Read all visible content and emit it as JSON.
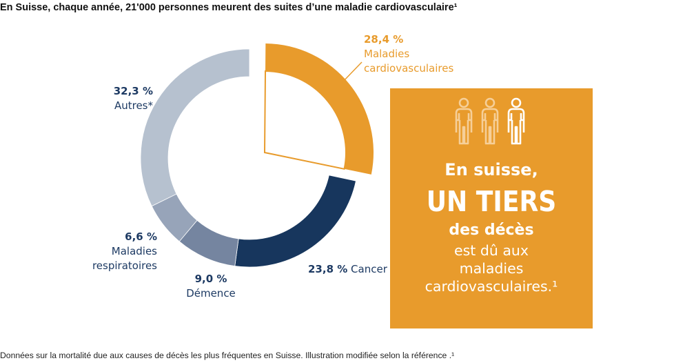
{
  "title": "En Suisse, chaque année, 21'000 personnes meurent des suites d’une maladie cardiovasculaire¹",
  "footnote": "Données sur la mortalité due aux causes de décès les plus fréquentes en Suisse. Illustration modifiée selon la référence .¹",
  "colors": {
    "cardio": "#e89b2c",
    "cancer": "#17365d",
    "dementia": "#7585a0",
    "respiratory": "#97a4b9",
    "other": "#b6c1cf",
    "label_blue": "#1d3a63"
  },
  "labels": {
    "cardio_pct": "28,4 %",
    "cardio_name_1": "Maladies",
    "cardio_name_2": "cardiovasculaires",
    "cancer_pct": "23,8 %",
    "cancer_name": "Cancer",
    "dementia_pct": "9,0 %",
    "dementia_name": "Démence",
    "respiratory_pct": "6,6 %",
    "respiratory_name_1": "Maladies",
    "respiratory_name_2": "respiratoires",
    "other_pct": "32,3 %",
    "other_name": "Autres*"
  },
  "callout": {
    "line1": "En suisse,",
    "line2": "UN TIERS",
    "line3": "des décès",
    "line4a": "est dû aux",
    "line4b": "maladies",
    "line4c": "cardiovasculaires.¹",
    "icons": [
      "person-icon",
      "person-icon",
      "person-outline-icon"
    ]
  },
  "chart_data": {
    "type": "pie",
    "variant": "donut",
    "categories": [
      "Maladies cardiovasculaires",
      "Cancer",
      "Démence",
      "Maladies respiratoires",
      "Autres*"
    ],
    "values": [
      28.4,
      23.8,
      9.0,
      6.6,
      32.3
    ],
    "unit": "%",
    "highlighted": "Maladies cardiovasculaires"
  }
}
